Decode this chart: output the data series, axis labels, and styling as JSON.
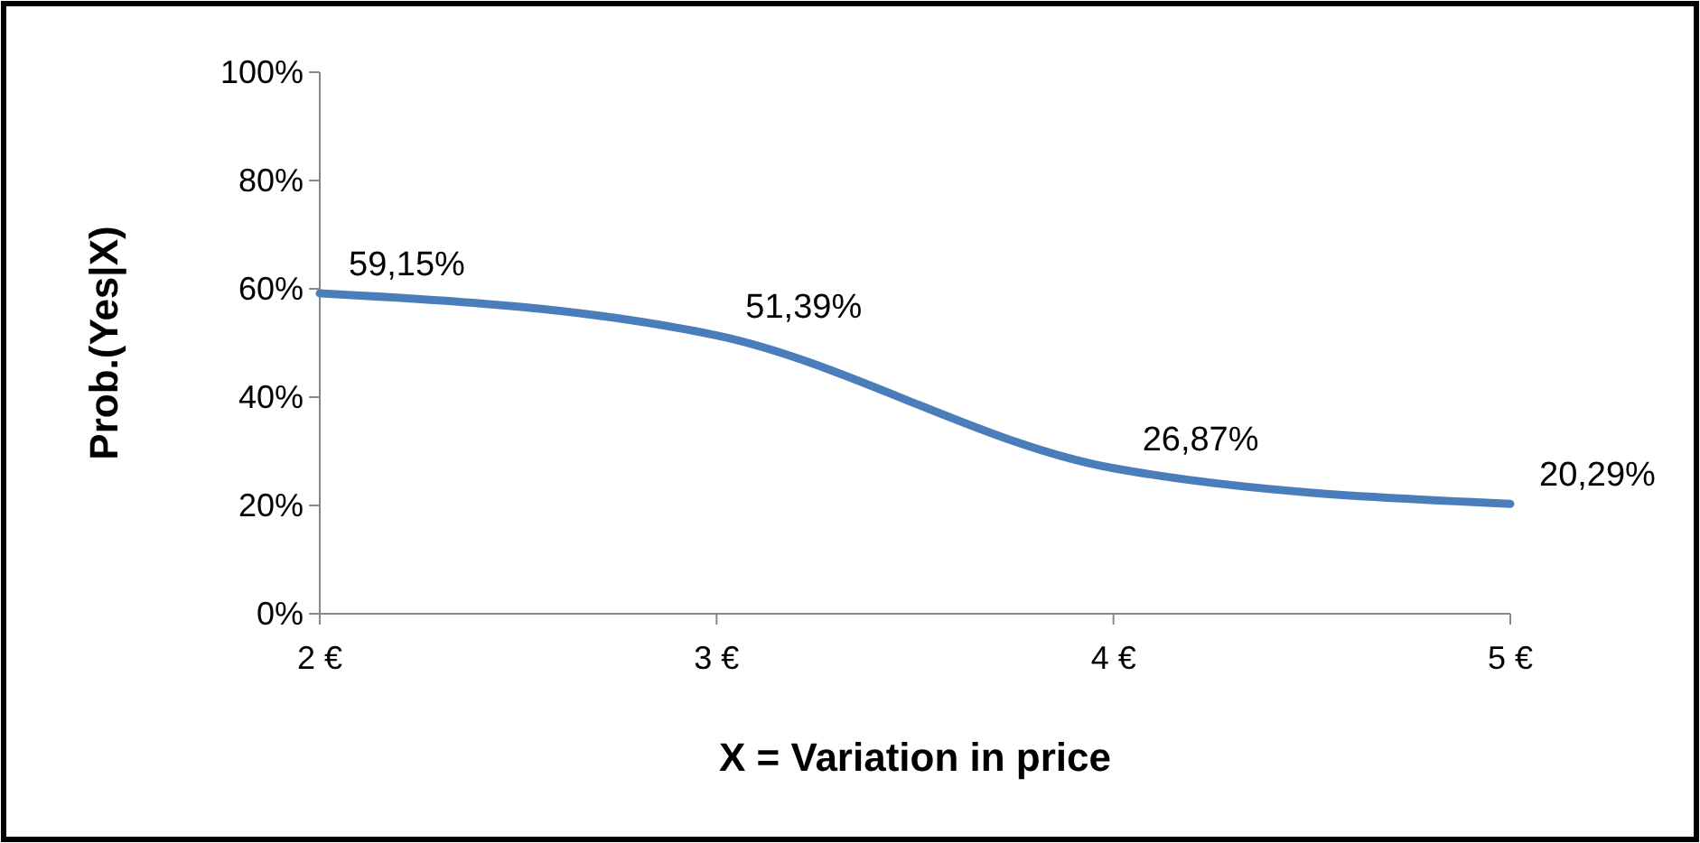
{
  "chart_data": {
    "type": "line",
    "xlabel": "X = Variation in price",
    "ylabel": "Prob.(Yes|X)",
    "x": [
      2,
      3,
      4,
      5
    ],
    "series": [
      {
        "color": "#4a7ebb",
        "values": [
          59.15,
          51.39,
          26.87,
          20.29
        ],
        "value_labels": [
          "59,15%",
          "51,39%",
          "26,87%",
          "20,29%"
        ]
      }
    ],
    "xlim": [
      2,
      5
    ],
    "xticks": [
      {
        "value": 2,
        "label": "2 €"
      },
      {
        "value": 3,
        "label": "3 €"
      },
      {
        "value": 4,
        "label": "4 €"
      },
      {
        "value": 5,
        "label": "5 €"
      }
    ],
    "ylim": [
      0,
      100
    ],
    "yticks": [
      {
        "value": 0,
        "label": "0%"
      },
      {
        "value": 20,
        "label": "20%"
      },
      {
        "value": 40,
        "label": "40%"
      },
      {
        "value": 60,
        "label": "60%"
      },
      {
        "value": 80,
        "label": "80%"
      },
      {
        "value": 100,
        "label": "100%"
      }
    ],
    "grid": false,
    "marker": "none",
    "line_style": "solid"
  }
}
